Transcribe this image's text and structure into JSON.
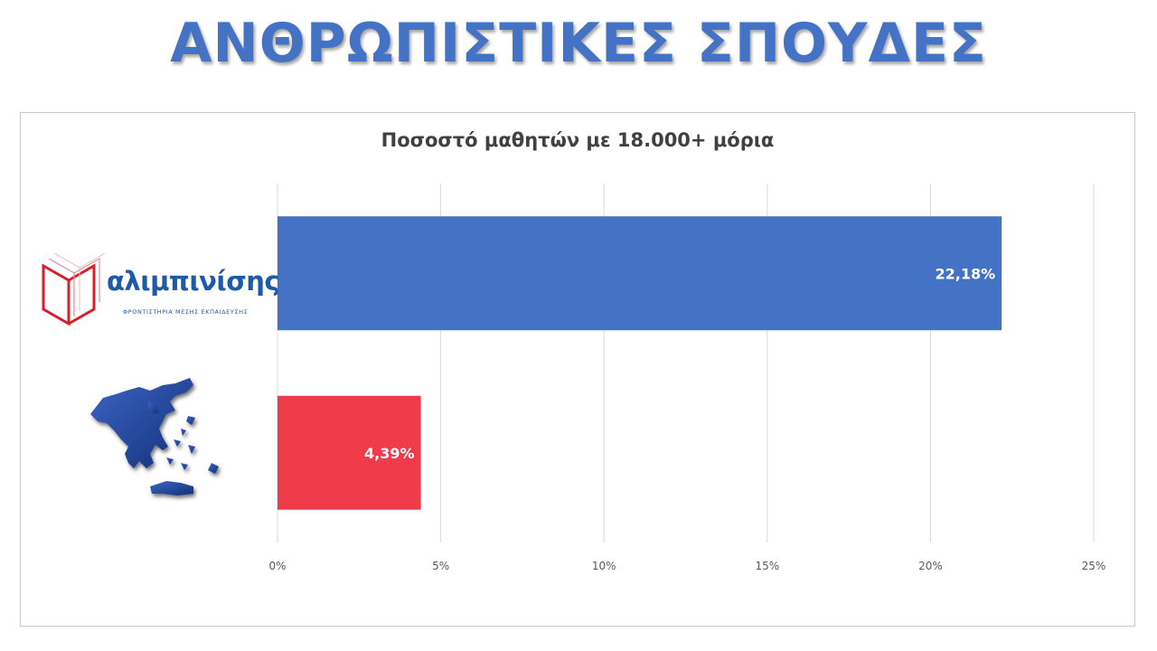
{
  "header": {
    "title": "ΑΝΘΡΩΠΙΣΤΙΚΕΣ ΣΠΟΥΔΕΣ"
  },
  "logo": {
    "name": "αλιμπινίσης",
    "tagline": "ΦΡΟΝΤΙΣΤΗΡΙΑ ΜΕΣΗΣ ΕΚΠΑΙΔΕΥΣΗΣ"
  },
  "chart_data": {
    "type": "bar",
    "orientation": "horizontal",
    "title": "Ποσοστό μαθητών με 18.000+ μόρια",
    "categories": [
      "αλιμπινίσης",
      "Ελλάδα"
    ],
    "values": [
      22.18,
      4.39
    ],
    "value_labels": [
      "22,18%",
      "4,39%"
    ],
    "colors": [
      "#4472c4",
      "#ef3b4a"
    ],
    "xlim": [
      0,
      25
    ],
    "x_ticks": [
      0,
      5,
      10,
      15,
      20,
      25
    ],
    "x_tick_labels": [
      "0%",
      "5%",
      "10%",
      "15%",
      "20%",
      "25%"
    ],
    "grid": true,
    "legend": "none"
  }
}
